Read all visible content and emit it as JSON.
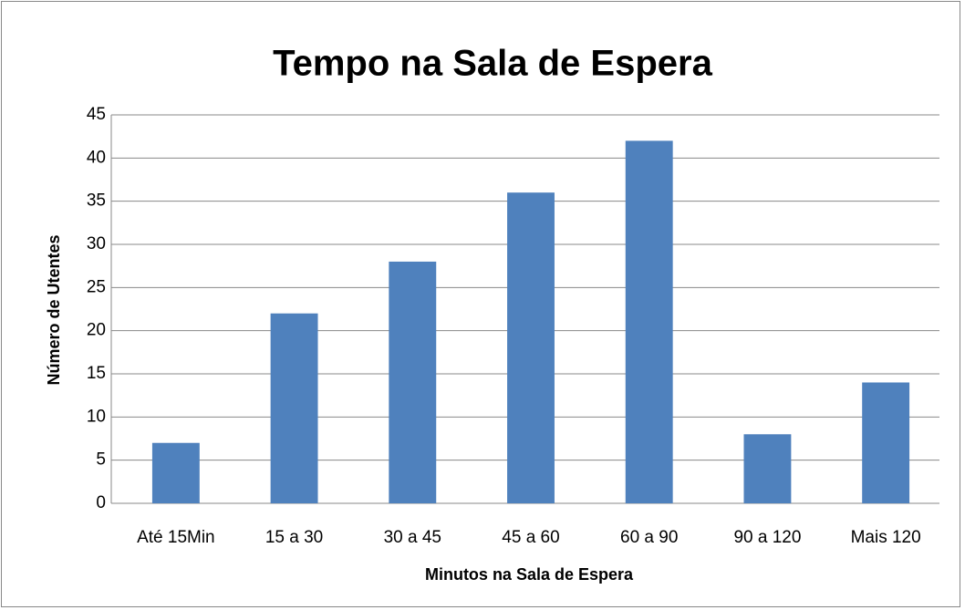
{
  "chart_data": {
    "type": "bar",
    "title": "Tempo na Sala de Espera",
    "x_label": "Minutos na Sala de Espera",
    "y_label": "Número de Utentes",
    "categories": [
      "Até 15Min",
      "15 a 30",
      "30 a 45",
      "45 a 60",
      "60 a 90",
      "90 a 120",
      "Mais 120"
    ],
    "values": [
      7,
      22,
      28,
      36,
      42,
      8,
      14
    ],
    "color": "#4f81bd",
    "ylim": [
      0,
      45
    ],
    "yticks": [
      0,
      5,
      10,
      15,
      20,
      25,
      30,
      35,
      40,
      45
    ],
    "grid": true
  }
}
